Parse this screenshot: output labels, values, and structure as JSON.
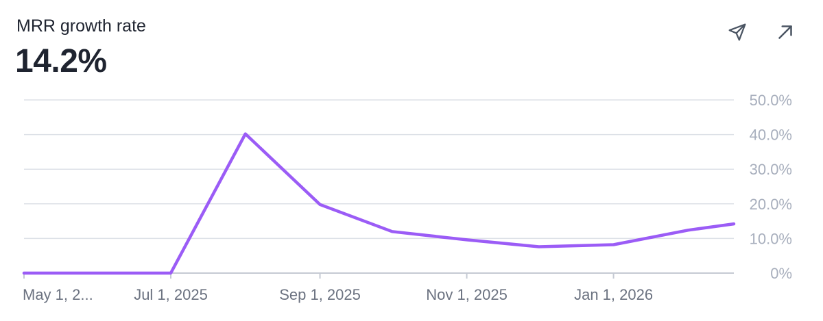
{
  "header": {
    "title": "MRR growth rate",
    "value": "14.2%"
  },
  "actions": {
    "send_icon": "send-icon",
    "expand_icon": "arrow-up-right-icon"
  },
  "chart_data": {
    "type": "line",
    "title": "MRR growth rate",
    "xlabel": "",
    "ylabel": "",
    "x_ticks": [
      "May 1, 2...",
      "Jul 1, 2025",
      "Sep 1, 2025",
      "Nov 1, 2025",
      "Jan 1, 2026"
    ],
    "y_ticks": [
      "0%",
      "10.0%",
      "20.0%",
      "30.0%",
      "40.0%",
      "50.0%"
    ],
    "ylim": [
      0,
      50
    ],
    "xlim": [
      "2025-05-01",
      "2026-02-20"
    ],
    "grid": true,
    "line_color": "#9b5cf6",
    "series": [
      {
        "x": [
          "2025-05-01",
          "2025-06-01",
          "2025-07-01",
          "2025-08-01",
          "2025-09-01",
          "2025-10-01",
          "2025-11-01",
          "2025-12-01",
          "2026-01-01",
          "2026-02-01",
          "2026-02-20"
        ],
        "values": [
          0,
          0,
          0,
          40.2,
          19.8,
          12.0,
          9.6,
          7.6,
          8.2,
          12.4,
          14.2
        ]
      }
    ]
  }
}
